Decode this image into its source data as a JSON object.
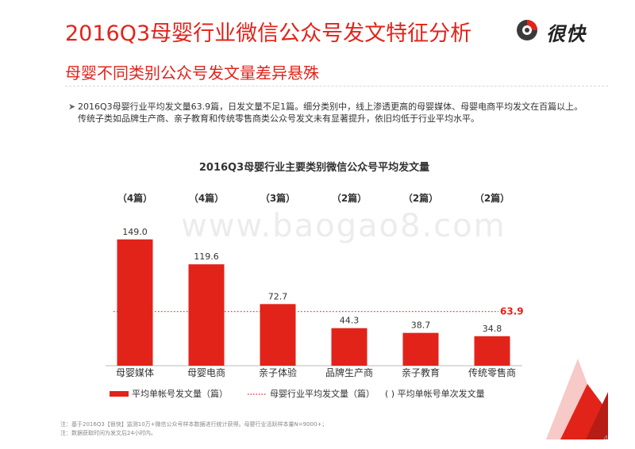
{
  "header": {
    "title": "2016Q3母婴行业微信公众号发文特征分析",
    "logo_text": "很快",
    "subtitle": "母婴不同类别公众号发文量差异悬殊"
  },
  "bullet": {
    "text": "2016Q3母婴行业平均发文量63.9篇，日发文量不足1篇。细分类别中，线上渗透更高的母婴媒体、母婴电商平均发文在百篇以上。传统子类如品牌生产商、亲子教育和传统零售商类公众号发文未有显著提升，依旧均低于行业平均水平。"
  },
  "watermark": "www.baogao8.com",
  "chart_data": {
    "type": "bar",
    "title": "2016Q3母婴行业主要类别微信公众号平均发文量",
    "categories": [
      "母婴媒体",
      "母婴电商",
      "亲子体验",
      "品牌生产商",
      "亲子教育",
      "传统零售商"
    ],
    "series": [
      {
        "name": "平均单帐号发文量（篇）",
        "values": [
          149.0,
          119.6,
          72.7,
          44.3,
          38.7,
          34.8
        ],
        "color": "#e2231a"
      }
    ],
    "value_labels": [
      "149.0",
      "119.6",
      "72.7",
      "44.3",
      "38.7",
      "34.8"
    ],
    "single_post_labels": [
      "（4篇）",
      "（4篇）",
      "（3篇）",
      "（2篇）",
      "（2篇）",
      "（2篇）"
    ],
    "average": {
      "name": "母婴行业平均发文量（篇）",
      "value": 63.9,
      "label": "63.9",
      "color": "#e2231a"
    },
    "legend": [
      {
        "name": "平均单帐号发文量（篇）",
        "kind": "bar"
      },
      {
        "name": "母婴行业平均发文量（篇）",
        "kind": "dotted-line"
      },
      {
        "name": "( ) 平均单帐号单次发文量",
        "kind": "text"
      }
    ],
    "legend_position": "bottom",
    "ylim": [
      0,
      160
    ],
    "grid": false
  },
  "footnote": {
    "line1": "注：基于2016Q3【很快】监测10万+微信公众号样本数据进行统计获得。母婴行业活跃样本量N=9000+；",
    "line2": "注：数据获取时间为发文后24小时内。"
  },
  "page_number": "4"
}
